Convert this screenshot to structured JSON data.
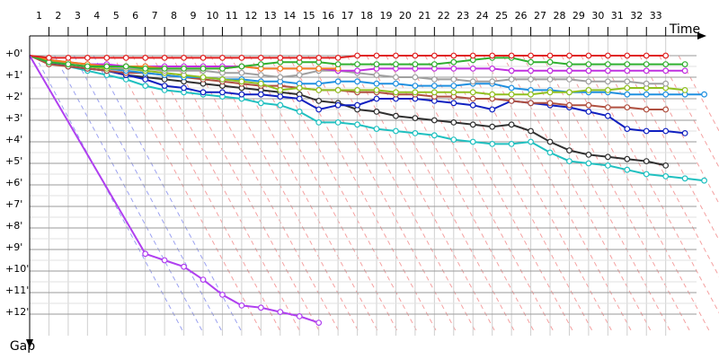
{
  "chart_data": {
    "type": "line",
    "x_label": "Time",
    "y_label": "Gap",
    "xlim": [
      0,
      34.6
    ],
    "xticks": [
      1,
      2,
      3,
      4,
      5,
      6,
      7,
      8,
      9,
      10,
      11,
      12,
      13,
      14,
      15,
      16,
      17,
      18,
      19,
      20,
      21,
      22,
      23,
      24,
      25,
      26,
      27,
      28,
      29,
      30,
      31,
      32,
      33
    ],
    "ylim": [
      -1,
      13
    ],
    "yticks": [
      {
        "value": 0,
        "label": "+0'"
      },
      {
        "value": 1,
        "label": "+1'"
      },
      {
        "value": 2,
        "label": "+2'"
      },
      {
        "value": 3,
        "label": "+3'"
      },
      {
        "value": 4,
        "label": "+4'"
      },
      {
        "value": 5,
        "label": "+5'"
      },
      {
        "value": 6,
        "label": "+6'"
      },
      {
        "value": 7,
        "label": "+7'"
      },
      {
        "value": 8,
        "label": "+8'"
      },
      {
        "value": 9,
        "label": "+9'"
      },
      {
        "value": 10,
        "label": "+10'"
      },
      {
        "value": 11,
        "label": "+11'"
      },
      {
        "value": 12,
        "label": "+12'"
      }
    ],
    "y_inverted": true,
    "grid": true,
    "x": [
      0,
      1,
      2,
      3,
      4,
      5,
      6,
      7,
      8,
      9,
      10,
      11,
      12,
      13,
      14,
      15,
      16,
      17,
      18,
      19,
      20,
      21,
      22,
      23,
      24,
      25,
      26,
      27,
      28,
      29,
      30,
      31,
      32,
      33,
      34,
      35
    ],
    "series": [
      {
        "color": "#20c0c0",
        "values": [
          0,
          0.3,
          0.5,
          0.7,
          0.9,
          1.1,
          1.4,
          1.6,
          1.7,
          1.8,
          1.9,
          2.0,
          2.2,
          2.3,
          2.6,
          3.1,
          3.1,
          3.2,
          3.4,
          3.5,
          3.6,
          3.7,
          3.9,
          4.0,
          4.1,
          4.1,
          4.0,
          4.5,
          4.9,
          5.0,
          5.1,
          5.3,
          5.5,
          5.6,
          5.7,
          5.8
        ]
      },
      {
        "color": "#303030",
        "values": [
          0,
          0.3,
          0.5,
          0.6,
          0.7,
          0.9,
          1.0,
          1.1,
          1.2,
          1.3,
          1.4,
          1.5,
          1.6,
          1.7,
          1.8,
          2.1,
          2.2,
          2.5,
          2.6,
          2.8,
          2.9,
          3.0,
          3.1,
          3.2,
          3.3,
          3.2,
          3.5,
          4.0,
          4.4,
          4.6,
          4.7,
          4.8,
          4.9,
          5.1,
          null,
          null
        ]
      },
      {
        "color": "#1020c0",
        "values": [
          0,
          0.3,
          0.5,
          0.6,
          0.7,
          0.9,
          1.1,
          1.4,
          1.5,
          1.7,
          1.7,
          1.8,
          1.8,
          1.9,
          2.0,
          2.5,
          2.3,
          2.3,
          2.0,
          2.0,
          2.0,
          2.1,
          2.2,
          2.3,
          2.5,
          2.1,
          2.2,
          2.3,
          2.4,
          2.6,
          2.8,
          3.4,
          3.5,
          3.5,
          3.6,
          null
        ]
      },
      {
        "color": "#b05040",
        "values": [
          0,
          0.4,
          0.5,
          0.6,
          0.7,
          0.8,
          0.8,
          0.9,
          1.0,
          1.1,
          1.2,
          1.3,
          1.4,
          1.4,
          1.5,
          1.6,
          1.6,
          1.7,
          1.7,
          1.8,
          1.8,
          1.9,
          1.9,
          2.0,
          2.0,
          2.1,
          2.2,
          2.2,
          2.3,
          2.3,
          2.4,
          2.4,
          2.5,
          2.5,
          null,
          null
        ]
      },
      {
        "color": "#2090e0",
        "values": [
          0,
          0.3,
          0.4,
          0.5,
          0.6,
          0.7,
          0.8,
          0.9,
          1.0,
          1.0,
          1.1,
          1.1,
          1.2,
          1.2,
          1.3,
          1.3,
          1.2,
          1.2,
          1.3,
          1.3,
          1.4,
          1.4,
          1.4,
          1.3,
          1.3,
          1.5,
          1.6,
          1.6,
          1.7,
          1.7,
          1.7,
          1.8,
          1.8,
          1.8,
          1.8,
          1.8
        ]
      },
      {
        "color": "#90c020",
        "values": [
          0,
          0.2,
          0.4,
          0.5,
          0.6,
          0.6,
          0.7,
          0.8,
          0.9,
          1.0,
          1.1,
          1.2,
          1.3,
          1.6,
          1.5,
          1.6,
          1.6,
          1.6,
          1.6,
          1.7,
          1.7,
          1.7,
          1.7,
          1.7,
          1.8,
          1.8,
          1.8,
          1.7,
          1.7,
          1.6,
          1.6,
          1.5,
          1.5,
          1.5,
          1.6,
          null
        ]
      },
      {
        "color": "#a0a0a0",
        "values": [
          0,
          0.3,
          0.4,
          0.5,
          0.5,
          0.6,
          0.6,
          0.7,
          0.7,
          0.7,
          0.8,
          0.8,
          0.9,
          1.0,
          0.9,
          0.7,
          0.7,
          0.8,
          0.9,
          1.0,
          1.0,
          1.1,
          1.1,
          1.2,
          1.2,
          1.1,
          1.1,
          1.1,
          1.1,
          1.2,
          1.2,
          1.2,
          1.3,
          1.3,
          null,
          null
        ]
      },
      {
        "color": "#c030e0",
        "values": [
          0,
          0.2,
          0.3,
          0.4,
          0.4,
          0.5,
          0.5,
          0.5,
          0.5,
          0.5,
          0.5,
          0.5,
          0.6,
          0.6,
          0.6,
          0.6,
          0.7,
          0.7,
          0.6,
          0.6,
          0.6,
          0.6,
          0.6,
          0.6,
          0.6,
          0.7,
          0.7,
          0.7,
          0.7,
          0.7,
          0.7,
          0.7,
          0.7,
          0.7,
          0.7,
          null
        ]
      },
      {
        "color": "#f08020",
        "x": [
          0,
          1,
          2,
          3,
          4,
          5,
          6,
          7,
          8,
          9,
          10,
          11,
          12,
          13,
          14,
          15,
          16
        ],
        "values": [
          0,
          0.2,
          0.3,
          0.4,
          0.5,
          0.5,
          0.5,
          0.6,
          0.6,
          0.6,
          0.6,
          0.5,
          0.6,
          0.6,
          0.6,
          0.6,
          0.6
        ]
      },
      {
        "color": "#30b030",
        "values": [
          0,
          0.3,
          0.4,
          0.5,
          0.5,
          0.5,
          0.6,
          0.6,
          0.6,
          0.6,
          0.6,
          0.5,
          0.4,
          0.3,
          0.3,
          0.3,
          0.4,
          0.4,
          0.4,
          0.4,
          0.4,
          0.4,
          0.3,
          0.2,
          0.1,
          0.1,
          0.3,
          0.3,
          0.4,
          0.4,
          0.4,
          0.4,
          0.4,
          0.4,
          0.4,
          null
        ]
      },
      {
        "color": "#e02020",
        "values": [
          0,
          0.1,
          0.1,
          0.1,
          0.1,
          0.1,
          0.1,
          0.1,
          0.1,
          0.1,
          0.1,
          0.1,
          0.1,
          0.1,
          0.1,
          0.1,
          0.1,
          0,
          0,
          0,
          0,
          0,
          0,
          0,
          0,
          0,
          0,
          0,
          0,
          0,
          0,
          0,
          0,
          0,
          null,
          null
        ]
      },
      {
        "color": "#b040f0",
        "x": [
          0,
          6,
          7,
          8,
          9,
          10,
          11,
          12,
          13,
          14,
          15
        ],
        "values": [
          0,
          9.2,
          9.5,
          9.8,
          10.4,
          11.1,
          11.6,
          11.7,
          11.9,
          12.1,
          12.4
        ]
      }
    ]
  }
}
